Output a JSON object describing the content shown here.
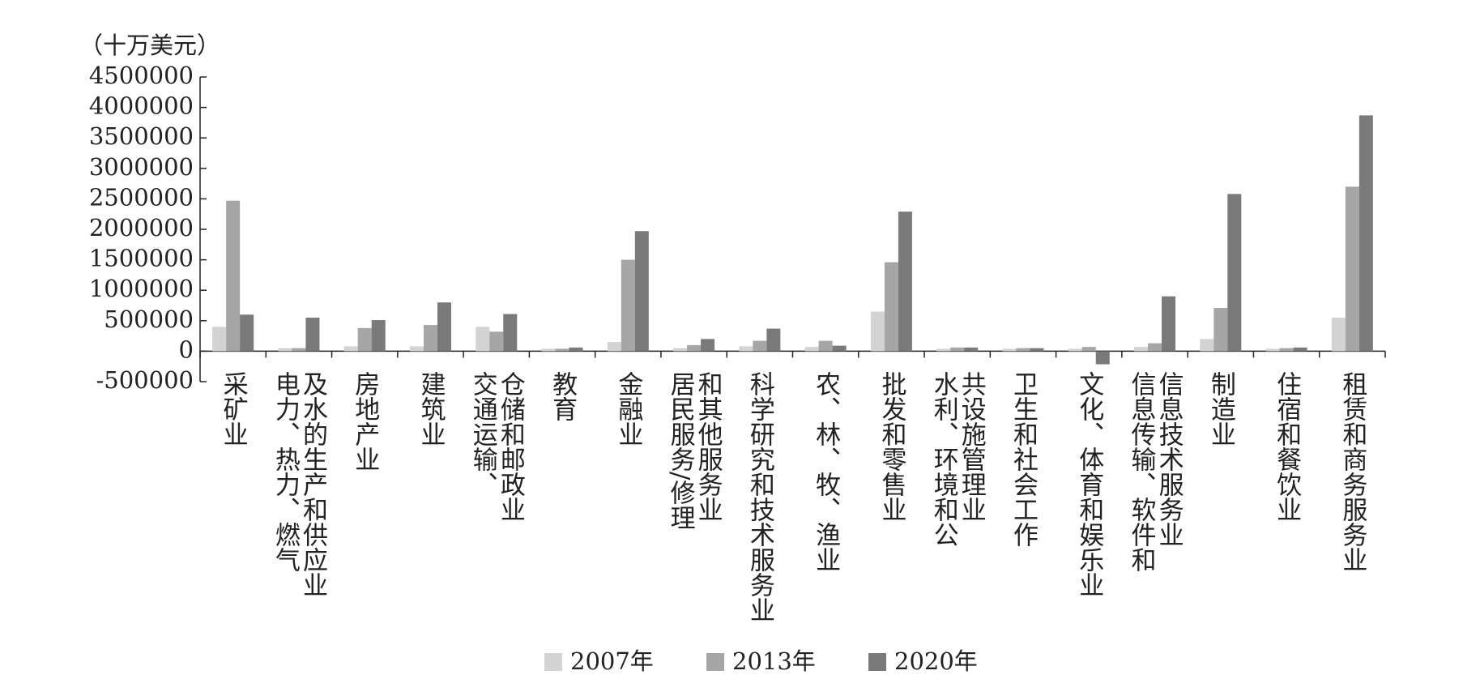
{
  "chart_data": {
    "type": "bar",
    "y_label": "（十万美元）",
    "categories": [
      "采矿业",
      "电力、热力、燃气\n及水的生产和供应业",
      "房地产业",
      "建筑业",
      "交通运输、\n仓储和邮政业",
      "教育",
      "金融业",
      "居民服务/修理\n和其他服务业",
      "科学研究和技术服务业",
      "农、林、牧、渔业",
      "批发和零售业",
      "水利、环境和公\n共设施管理业",
      "卫生和社会工作",
      "文化、体育和娱乐业",
      "信息传输、软件和\n信息技术服务业",
      "制造业",
      "住宿和餐饮业",
      "租赁和商务服务业"
    ],
    "series": [
      {
        "name": "2007年",
        "color": "#d3d3d3",
        "values": [
          400000,
          50000,
          80000,
          80000,
          400000,
          40000,
          150000,
          50000,
          80000,
          70000,
          650000,
          40000,
          40000,
          40000,
          70000,
          200000,
          40000,
          550000
        ]
      },
      {
        "name": "2013年",
        "color": "#a6a6a6",
        "values": [
          2470000,
          50000,
          380000,
          430000,
          320000,
          40000,
          1500000,
          100000,
          170000,
          170000,
          1460000,
          60000,
          50000,
          70000,
          130000,
          710000,
          50000,
          2700000
        ]
      },
      {
        "name": "2020年",
        "color": "#7a7a7a",
        "values": [
          600000,
          550000,
          510000,
          800000,
          610000,
          60000,
          1970000,
          200000,
          370000,
          90000,
          2290000,
          60000,
          50000,
          -215000,
          900000,
          2580000,
          60000,
          3870000
        ]
      }
    ],
    "ylim": [
      -500000,
      4500000
    ],
    "yticks": [
      -500000,
      0,
      500000,
      1000000,
      1500000,
      2000000,
      2500000,
      3000000,
      3500000,
      4000000,
      4500000
    ],
    "legend": "bottom"
  }
}
